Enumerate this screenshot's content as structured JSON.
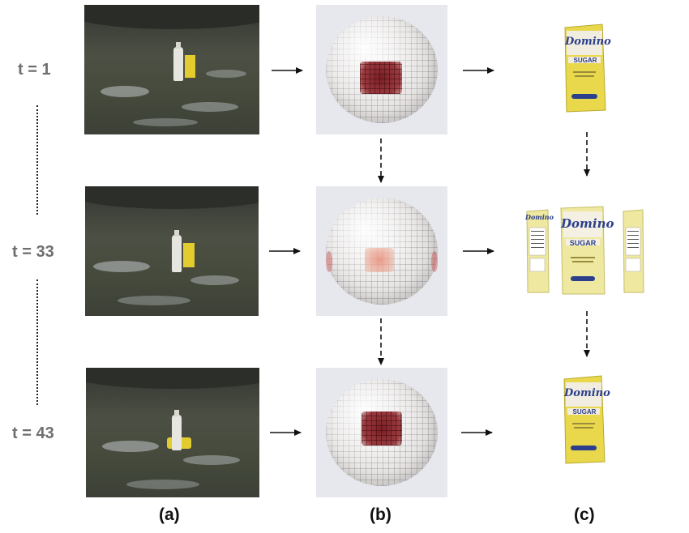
{
  "time_labels": [
    "t = 1",
    "t = 33",
    "t = 43"
  ],
  "captions": [
    "(a)",
    "(b)",
    "(c)"
  ],
  "brand": {
    "name": "Domino",
    "product": "SUGAR"
  },
  "colors": {
    "label_gray": "#6e6e6e",
    "panel_bg": "#e6e8ee",
    "bag_yellow": "#e9d84b",
    "bag_blue": "#2c3f8c",
    "patch_red": "#7a1f25"
  }
}
